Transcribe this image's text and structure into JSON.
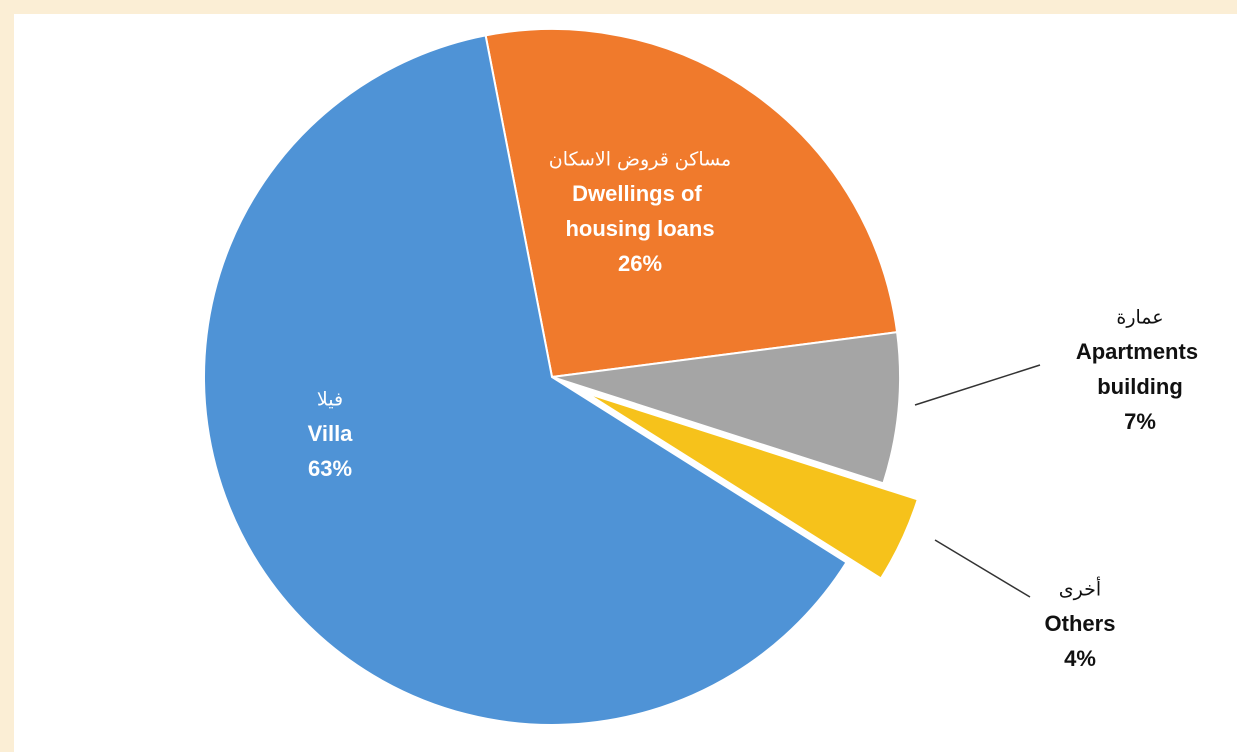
{
  "chart_data": {
    "type": "pie",
    "categories": [
      "Villa",
      "Dwellings of housing loans",
      "Apartments building",
      "Others"
    ],
    "categories_ar": [
      "فيلا",
      "مساكن قروض الاسكان",
      "عمارة",
      "أخرى"
    ],
    "values": [
      63,
      26,
      7,
      4
    ],
    "value_labels": [
      "63%",
      "26%",
      "7%",
      "4%"
    ],
    "colors": [
      "#4f93d6",
      "#f07a2c",
      "#a5a5a5",
      "#f6c21b"
    ]
  }
}
